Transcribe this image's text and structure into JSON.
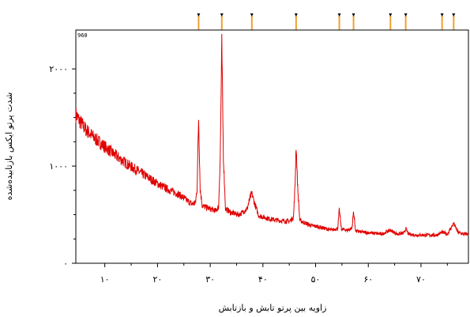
{
  "chart_data": {
    "type": "line",
    "xlabel": "زاویه بین پرتو تابش و بازتابش",
    "ylabel": "شدت پرتو ایکس بازتابیده‌شده",
    "sample_tag": "960",
    "xlim": [
      4.5,
      79
    ],
    "ylim": [
      0,
      2400
    ],
    "grid": false,
    "line_color": "#e00000",
    "marker_color": "#f0a030",
    "x_ticks": [
      10,
      20,
      30,
      40,
      50,
      60,
      70
    ],
    "x_tick_labels": [
      "۱۰",
      "۲۰",
      "۳۰",
      "۴۰",
      "۵۰",
      "۶۰",
      "۷۰"
    ],
    "y_ticks": [
      0,
      1000,
      2000
    ],
    "y_tick_labels": [
      "۰",
      "۱۰۰۰",
      "۲۰۰۰"
    ],
    "reference_peaks": [
      27.8,
      32.2,
      37.9,
      46.3,
      54.5,
      57.2,
      64.2,
      67.1,
      74.0,
      76.2
    ],
    "series": [
      {
        "values": [
          [
            4.5,
            1530
          ],
          [
            5.5,
            1440
          ],
          [
            6.5,
            1370
          ],
          [
            8,
            1290
          ],
          [
            10,
            1200
          ],
          [
            12,
            1110
          ],
          [
            14,
            1030
          ],
          [
            16,
            960
          ],
          [
            18,
            890
          ],
          [
            20,
            820
          ],
          [
            22,
            760
          ],
          [
            24,
            710
          ],
          [
            25.5,
            650
          ],
          [
            26.5,
            610
          ],
          [
            27.2,
            620
          ],
          [
            27.5,
            760
          ],
          [
            27.8,
            1500
          ],
          [
            28.1,
            760
          ],
          [
            28.5,
            590
          ],
          [
            30,
            560
          ],
          [
            31,
            540
          ],
          [
            31.6,
            580
          ],
          [
            31.9,
            1100
          ],
          [
            32.2,
            2250
          ],
          [
            32.5,
            1100
          ],
          [
            32.9,
            560
          ],
          [
            34,
            520
          ],
          [
            35.5,
            500
          ],
          [
            37,
            560
          ],
          [
            37.6,
            680
          ],
          [
            37.9,
            720
          ],
          [
            38.4,
            620
          ],
          [
            39.2,
            490
          ],
          [
            41,
            460
          ],
          [
            43,
            440
          ],
          [
            45,
            430
          ],
          [
            45.8,
            470
          ],
          [
            46.1,
            800
          ],
          [
            46.3,
            1220
          ],
          [
            46.6,
            780
          ],
          [
            47,
            440
          ],
          [
            49,
            390
          ],
          [
            51,
            370
          ],
          [
            53,
            340
          ],
          [
            54.2,
            360
          ],
          [
            54.5,
            550
          ],
          [
            54.9,
            350
          ],
          [
            56,
            340
          ],
          [
            56.9,
            360
          ],
          [
            57.2,
            530
          ],
          [
            57.6,
            330
          ],
          [
            59,
            320
          ],
          [
            61,
            310
          ],
          [
            62.5,
            300
          ],
          [
            64.2,
            340
          ],
          [
            65.5,
            300
          ],
          [
            66.8,
            310
          ],
          [
            67.1,
            360
          ],
          [
            67.6,
            300
          ],
          [
            69,
            290
          ],
          [
            71,
            290
          ],
          [
            73,
            290
          ],
          [
            74,
            320
          ],
          [
            75,
            300
          ],
          [
            76.2,
            410
          ],
          [
            77,
            320
          ],
          [
            78,
            300
          ],
          [
            79,
            300
          ]
        ]
      }
    ]
  }
}
